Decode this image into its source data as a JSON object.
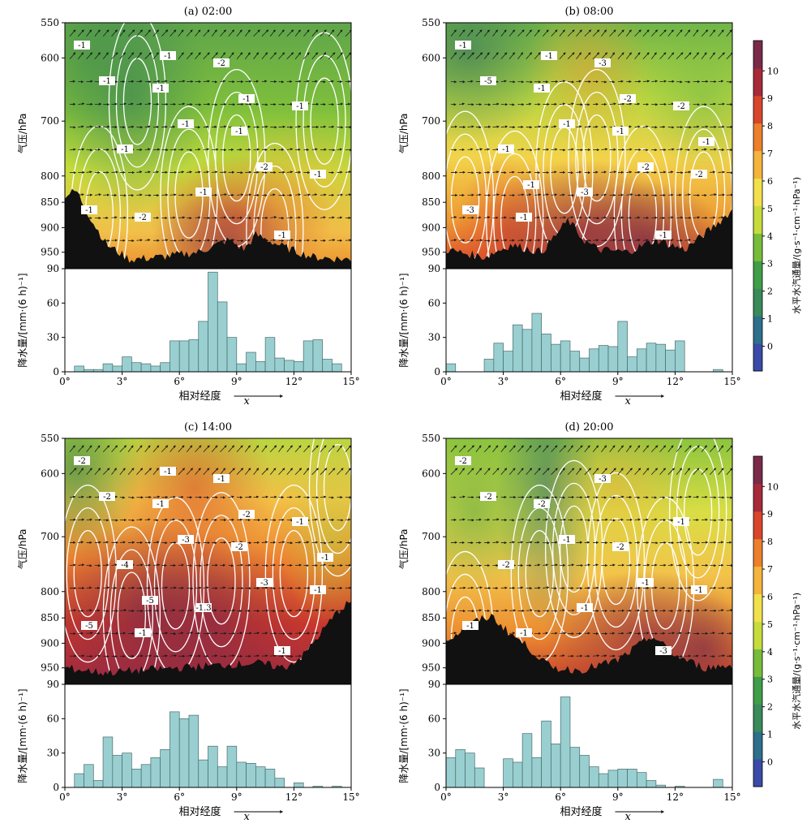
{
  "figure": {
    "vertical_axis_label": "气压/hPa",
    "precip_axis_label": "降水量/[mm·(6 h)⁻¹]",
    "x_axis_label": "相对经度",
    "x_direction_symbol": "x",
    "colorbar_label": "水平水汽通量/(g·s⁻¹·cm⁻¹·hPa⁻¹)",
    "pressure_ticks": [
      550,
      600,
      700,
      800,
      850,
      900,
      950
    ],
    "precip_ticks": [
      0,
      30,
      60,
      90
    ],
    "x_ticks": [
      "0°",
      "3°",
      "6°",
      "9°",
      "12°",
      "15°"
    ],
    "colorbar_ticks": [
      0,
      1,
      2,
      3,
      4,
      5,
      6,
      7,
      8,
      9,
      10
    ],
    "colorbar_colors": [
      "#3a4aa8",
      "#2e6f8c",
      "#3a8a5a",
      "#3f9e48",
      "#78bd3a",
      "#c6dc3c",
      "#f1e04a",
      "#f4b43c",
      "#ec7f2c",
      "#d8452a",
      "#a82a3a",
      "#7a2a48"
    ]
  },
  "chart_data": [
    {
      "panel": "a",
      "title": "(a) 02:00",
      "type": "bar",
      "x": [
        0.5,
        1.0,
        1.5,
        2.0,
        2.5,
        3.0,
        3.5,
        4.0,
        4.5,
        5.0,
        5.5,
        6.0,
        6.5,
        7.0,
        7.5,
        8.0,
        8.5,
        9.0,
        9.5,
        10.0,
        10.5,
        11.0,
        11.5,
        12.0,
        12.5,
        13.0,
        13.5,
        14.0,
        14.5
      ],
      "values": [
        0,
        5,
        2,
        2,
        7,
        5,
        13,
        8,
        7,
        5,
        8,
        27,
        27,
        28,
        44,
        87,
        61,
        30,
        7,
        17,
        9,
        30,
        12,
        10,
        9,
        27,
        28,
        11,
        7
      ],
      "xlabel": "相对经度",
      "ylabel": "降水量/[mm·(6 h)⁻¹]",
      "xlim": [
        0,
        15
      ],
      "ylim": [
        0,
        90
      ],
      "contour_labels": [
        "-1",
        "-1",
        "-1",
        "-1",
        "-2",
        "-2",
        "-1",
        "-1",
        "-1",
        "-1",
        "-1",
        "-1",
        "-2",
        "-1",
        "-1",
        "-1"
      ],
      "colorbar": false
    },
    {
      "panel": "b",
      "title": "(b) 08:00",
      "type": "bar",
      "x": [
        0.5,
        1.0,
        1.5,
        2.0,
        2.5,
        3.0,
        3.5,
        4.0,
        4.5,
        5.0,
        5.5,
        6.0,
        6.5,
        7.0,
        7.5,
        8.0,
        8.5,
        9.0,
        9.5,
        10.0,
        10.5,
        11.0,
        11.5,
        12.0,
        12.5,
        13.0,
        13.5,
        14.0,
        14.5
      ],
      "values": [
        7,
        0,
        0,
        0,
        11,
        25,
        18,
        41,
        37,
        51,
        33,
        24,
        27,
        18,
        12,
        20,
        23,
        22,
        44,
        13,
        20,
        25,
        24,
        19,
        27,
        0,
        0,
        0,
        2
      ],
      "xlabel": "相对经度",
      "ylabel": "降水量/[mm·(6 h)⁻¹]",
      "xlim": [
        0,
        15
      ],
      "ylim": [
        0,
        90
      ],
      "contour_labels": [
        "-1",
        "-1",
        "-1",
        "-2",
        "-1",
        "-3",
        "-2",
        "-1",
        "-3",
        "-1",
        "-5",
        "-1",
        "-2",
        "-3",
        "-1",
        "-2",
        "-1",
        "-1"
      ],
      "colorbar": true
    },
    {
      "panel": "c",
      "title": "(c) 14:00",
      "type": "bar",
      "x": [
        0.5,
        1.0,
        1.5,
        2.0,
        2.5,
        3.0,
        3.5,
        4.0,
        4.5,
        5.0,
        5.5,
        6.0,
        6.5,
        7.0,
        7.5,
        8.0,
        8.5,
        9.0,
        9.5,
        10.0,
        10.5,
        11.0,
        11.5,
        12.0,
        12.5,
        13.0,
        13.5,
        14.0,
        14.5
      ],
      "values": [
        0,
        12,
        20,
        6,
        44,
        28,
        30,
        16,
        20,
        26,
        33,
        66,
        60,
        63,
        24,
        36,
        18,
        36,
        22,
        21,
        18,
        16,
        8,
        0,
        4,
        0,
        1,
        0,
        1
      ],
      "xlabel": "相对经度",
      "ylabel": "降水量/[mm·(6 h)⁻¹]",
      "xlim": [
        0,
        15
      ],
      "ylim": [
        0,
        90
      ],
      "contour_labels": [
        "-2",
        "-1",
        "-2",
        "-1",
        "-1",
        "-1",
        "-1",
        "-4",
        "-1.3",
        "-1",
        "-2",
        "-3",
        "-3",
        "-5",
        "-1",
        "-2",
        "-1",
        "-5"
      ],
      "colorbar": false
    },
    {
      "panel": "d",
      "title": "(d) 20:00",
      "type": "bar",
      "x": [
        0.5,
        1.0,
        1.5,
        2.0,
        2.5,
        3.0,
        3.5,
        4.0,
        4.5,
        5.0,
        5.5,
        6.0,
        6.5,
        7.0,
        7.5,
        8.0,
        8.5,
        9.0,
        9.5,
        10.0,
        10.5,
        11.0,
        11.5,
        12.0,
        12.5,
        13.0,
        13.5,
        14.0,
        14.5
      ],
      "values": [
        26,
        33,
        30,
        17,
        0,
        0,
        25,
        22,
        47,
        26,
        58,
        38,
        79,
        35,
        28,
        18,
        12,
        15,
        16,
        16,
        13,
        6,
        2,
        0,
        1,
        0,
        0,
        0,
        7
      ],
      "xlabel": "相对经度",
      "ylabel": "降水量/[mm·(6 h)⁻¹]",
      "xlim": [
        0,
        15
      ],
      "ylim": [
        0,
        90
      ],
      "contour_labels": [
        "-2",
        "-2",
        "-2",
        "-1",
        "-1",
        "-3",
        "-1",
        "-2",
        "-1",
        "-3",
        "-2",
        "-1",
        "-1",
        "-1"
      ],
      "colorbar": true
    }
  ]
}
